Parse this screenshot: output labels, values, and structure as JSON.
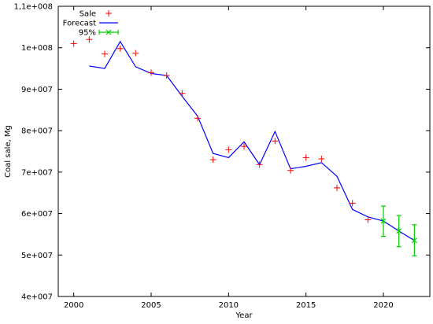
{
  "chart_data": {
    "type": "line",
    "xlabel": "Year",
    "ylabel": "Coal sale, Mg",
    "xlim": [
      1999,
      2023
    ],
    "ylim": [
      40000000,
      110000000
    ],
    "x_ticks": [
      2000,
      2005,
      2010,
      2015,
      2020
    ],
    "x_tick_labels": [
      "2000",
      "2005",
      "2010",
      "2015",
      "2020"
    ],
    "y_ticks": [
      40000000,
      50000000,
      60000000,
      70000000,
      80000000,
      90000000,
      100000000,
      110000000
    ],
    "y_tick_labels": [
      "4e+007",
      "5e+007",
      "6e+007",
      "7e+007",
      "8e+007",
      "9e+007",
      "1e+008",
      "1,1e+008"
    ],
    "grid": false,
    "legend_position": "top-left",
    "legend_labels": [
      "Sale",
      "Forecast",
      "95%"
    ],
    "colors": {
      "sale": "#ff0000",
      "forecast": "#0000ff",
      "ci": "#00cc00"
    },
    "sale": {
      "x": [
        2000,
        2001,
        2002,
        2003,
        2004,
        2005,
        2006,
        2007,
        2008,
        2009,
        2010,
        2011,
        2012,
        2013,
        2014,
        2015,
        2016,
        2017,
        2018,
        2019
      ],
      "y": [
        101000000,
        102000000,
        98500000,
        99800000,
        98700000,
        94000000,
        93300000,
        89000000,
        83000000,
        73000000,
        75400000,
        76200000,
        71800000,
        77500000,
        70400000,
        73500000,
        73200000,
        66200000,
        62500000,
        58500000
      ]
    },
    "forecast": {
      "x": [
        2001,
        2002,
        2003,
        2004,
        2005,
        2006,
        2007,
        2008,
        2009,
        2010,
        2011,
        2012,
        2013,
        2014,
        2015,
        2016,
        2017,
        2018,
        2019,
        2020,
        2021,
        2022
      ],
      "y": [
        95600000,
        95000000,
        101500000,
        95400000,
        93800000,
        93300000,
        88300000,
        83500000,
        74500000,
        73500000,
        77300000,
        71800000,
        79800000,
        70800000,
        71400000,
        72300000,
        69000000,
        61000000,
        59200000,
        58200000,
        55800000,
        53500000
      ]
    },
    "interval_95": {
      "x": [
        2020,
        2021,
        2022
      ],
      "center": [
        58200000,
        55800000,
        53500000
      ],
      "lower": [
        54500000,
        52000000,
        49800000
      ],
      "upper": [
        61800000,
        59500000,
        57300000
      ]
    }
  }
}
